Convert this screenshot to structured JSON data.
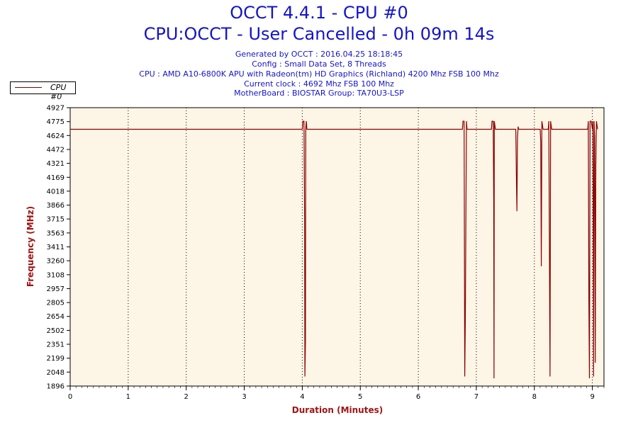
{
  "header": {
    "title": "OCCT 4.4.1 - CPU #0",
    "subtitle": "CPU:OCCT - User Cancelled - 0h 09m 14s",
    "info_lines": [
      "Generated by OCCT : 2016.04.25 18:18:45",
      "Config : Small Data Set, 8 Threads",
      "CPU : AMD A10-6800K APU with Radeon(tm) HD Graphics (Richland) 4200 Mhz FSB 100 Mhz",
      "Current clock : 4692 Mhz FSB 100 Mhz",
      "MotherBoard : BIOSTAR Group: TA70U3-LSP"
    ]
  },
  "colors": {
    "title": "#1414c8",
    "axis_label": "#a01414",
    "series": "#8b0000",
    "plot_background": "#fdf5e6"
  },
  "chart_data": {
    "type": "line",
    "xlabel": "Duration (Minutes)",
    "ylabel": "Frequency (MHz)",
    "xlim": [
      0,
      9.2
    ],
    "ylim": [
      1896,
      4927
    ],
    "x_ticks": [
      "0",
      "1",
      "2",
      "3",
      "4",
      "5",
      "6",
      "7",
      "8",
      "9"
    ],
    "y_ticks": [
      "4927",
      "4775",
      "4624",
      "4472",
      "4321",
      "4169",
      "4018",
      "3866",
      "3715",
      "3563",
      "3411",
      "3260",
      "3108",
      "2957",
      "2805",
      "2654",
      "2502",
      "2351",
      "2199",
      "2048",
      "1896"
    ],
    "grid": "vertical dotted",
    "legend_position": "top-left",
    "series": [
      {
        "name": "CPU #0",
        "baseline": 4692,
        "points": [
          [
            0,
            4692
          ],
          [
            4.0,
            4692
          ],
          [
            4.01,
            4780
          ],
          [
            4.03,
            4780
          ],
          [
            4.04,
            3700
          ],
          [
            4.045,
            2000
          ],
          [
            4.055,
            2400
          ],
          [
            4.06,
            4692
          ],
          [
            4.07,
            4780
          ],
          [
            4.08,
            4692
          ],
          [
            6.76,
            4692
          ],
          [
            6.77,
            4780
          ],
          [
            6.79,
            4780
          ],
          [
            6.8,
            2000
          ],
          [
            6.81,
            2600
          ],
          [
            6.83,
            4780
          ],
          [
            6.84,
            4692
          ],
          [
            7.26,
            4692
          ],
          [
            7.27,
            4780
          ],
          [
            7.29,
            4780
          ],
          [
            7.3,
            3900
          ],
          [
            7.305,
            1980
          ],
          [
            7.31,
            4780
          ],
          [
            7.33,
            4692
          ],
          [
            7.68,
            4692
          ],
          [
            7.69,
            4200
          ],
          [
            7.7,
            3800
          ],
          [
            7.71,
            4600
          ],
          [
            7.72,
            4720
          ],
          [
            7.73,
            4692
          ],
          [
            8.1,
            4692
          ],
          [
            8.11,
            4550
          ],
          [
            8.12,
            3200
          ],
          [
            8.13,
            4780
          ],
          [
            8.15,
            4692
          ],
          [
            8.24,
            4692
          ],
          [
            8.25,
            4780
          ],
          [
            8.27,
            2000
          ],
          [
            8.28,
            4780
          ],
          [
            8.3,
            4692
          ],
          [
            8.92,
            4692
          ],
          [
            8.93,
            4780
          ],
          [
            8.94,
            2800
          ],
          [
            8.95,
            1980
          ],
          [
            8.96,
            4780
          ],
          [
            8.98,
            4780
          ],
          [
            9.0,
            4692
          ],
          [
            9.01,
            4780
          ],
          [
            9.02,
            2000
          ],
          [
            9.03,
            4780
          ],
          [
            9.04,
            4600
          ],
          [
            9.05,
            2150
          ],
          [
            9.06,
            4300
          ],
          [
            9.07,
            4780
          ],
          [
            9.09,
            4692
          ]
        ]
      }
    ]
  }
}
